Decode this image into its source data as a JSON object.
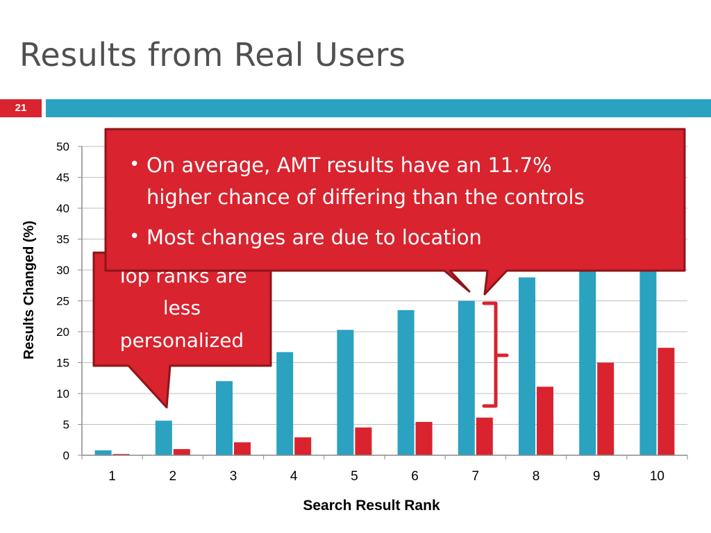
{
  "slide": {
    "title": "Results from Real Users",
    "number": "21"
  },
  "colors": {
    "accent_blue": "#2aa2c0",
    "accent_red": "#d9232e"
  },
  "callout_main": {
    "bullets": [
      "On average, AMT results have an 11.7%",
      "higher chance of differing than the controls",
      "Most changes are due to location"
    ]
  },
  "callout_left": {
    "lines": [
      "Top ranks are",
      "less",
      "personalized"
    ]
  },
  "chart_data": {
    "type": "bar",
    "xlabel": "Search Result Rank",
    "ylabel": "Results Changed (%)",
    "ylim": [
      0,
      50
    ],
    "yticks": [
      0,
      5,
      10,
      15,
      20,
      25,
      30,
      35,
      40,
      45,
      50
    ],
    "categories": [
      "1",
      "2",
      "3",
      "4",
      "5",
      "6",
      "7",
      "8",
      "9",
      "10"
    ],
    "grid": true,
    "series": [
      {
        "color": "#2aa2c0",
        "values": [
          0.8,
          5.6,
          12.0,
          16.7,
          20.3,
          23.5,
          25.0,
          28.8,
          31.0,
          31.0
        ]
      },
      {
        "color": "#d9232e",
        "values": [
          0.2,
          1.0,
          2.1,
          2.9,
          4.5,
          5.4,
          6.1,
          11.1,
          15.0,
          17.4
        ]
      }
    ]
  }
}
